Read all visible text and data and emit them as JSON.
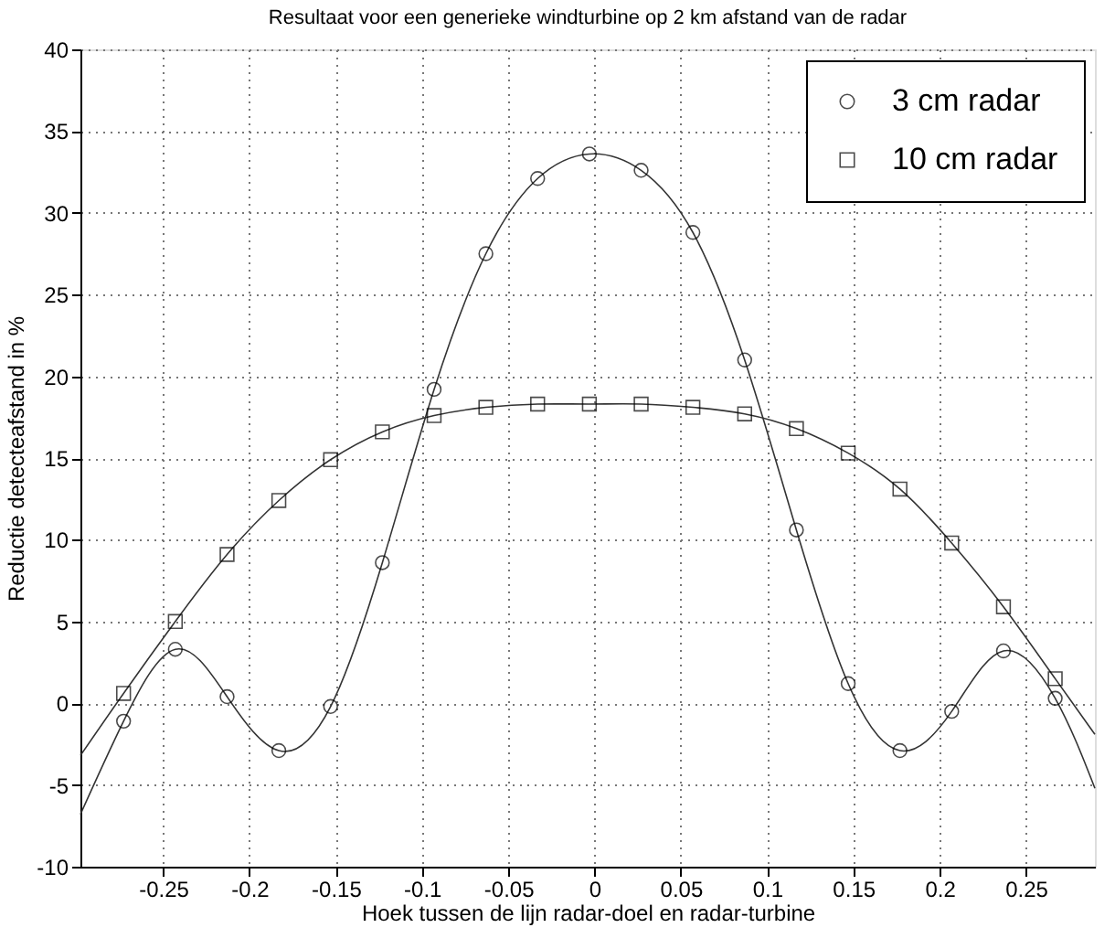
{
  "chart_data": {
    "type": "line",
    "title": "Resultaat voor een generieke windturbine op 2 km afstand van de radar",
    "xlabel": "Hoek tussen de lijn radar-doel en radar-turbine",
    "ylabel": "Reductie detecteafstand in %",
    "xlim": [
      -0.298,
      0.29
    ],
    "ylim": [
      -10,
      40
    ],
    "xticks": [
      -0.25,
      -0.2,
      -0.15,
      -0.1,
      -0.05,
      0,
      0.05,
      0.1,
      0.15,
      0.2,
      0.25
    ],
    "yticks": [
      -10,
      -5,
      0,
      5,
      10,
      15,
      20,
      25,
      30,
      35,
      40
    ],
    "grid": true,
    "legend": "top right",
    "series": [
      {
        "color": "#333333",
        "marker": "none",
        "x": [
          -0.298,
          -0.273,
          -0.243,
          -0.213,
          -0.183,
          -0.153,
          -0.123,
          -0.093,
          -0.063,
          -0.033,
          -0.003,
          0.027,
          0.057,
          0.087,
          0.117,
          0.147,
          0.177,
          0.207,
          0.237,
          0.267,
          0.29
        ],
        "values": [
          -6.8,
          -1.1,
          3.3,
          0.4,
          -2.9,
          -0.2,
          8.6,
          19.2,
          27.5,
          32.1,
          33.6,
          32.6,
          28.8,
          21.0,
          10.6,
          1.2,
          -2.9,
          -0.5,
          3.2,
          0.3,
          -5.2
        ]
      },
      {
        "color": "#333333",
        "marker": "none",
        "x": [
          -0.298,
          -0.273,
          -0.243,
          -0.213,
          -0.183,
          -0.153,
          -0.123,
          -0.093,
          -0.063,
          -0.033,
          -0.003,
          0.027,
          0.057,
          0.087,
          0.117,
          0.147,
          0.177,
          0.207,
          0.237,
          0.267,
          0.29
        ],
        "values": [
          -3.2,
          0.6,
          5.0,
          9.1,
          12.4,
          14.9,
          16.6,
          17.6,
          18.1,
          18.3,
          18.3,
          18.3,
          18.1,
          17.7,
          16.8,
          15.3,
          13.1,
          9.8,
          5.9,
          1.5,
          -1.9
        ]
      },
      {
        "type": "scatter",
        "name": "3 cm radar",
        "color": "#000000",
        "marker": "circle",
        "x": [
          -0.273,
          -0.243,
          -0.213,
          -0.183,
          -0.153,
          -0.123,
          -0.093,
          -0.063,
          -0.033,
          -0.003,
          0.027,
          0.057,
          0.087,
          0.117,
          0.147,
          0.177,
          0.207,
          0.237,
          0.267
        ],
        "values": [
          -1.1,
          3.3,
          0.4,
          -2.9,
          -0.2,
          8.6,
          19.2,
          27.5,
          32.1,
          33.6,
          32.6,
          28.8,
          21.0,
          10.6,
          1.2,
          -2.9,
          -0.5,
          3.2,
          0.3
        ]
      },
      {
        "type": "scatter",
        "name": "10 cm radar",
        "color": "#000000",
        "marker": "square",
        "x": [
          -0.273,
          -0.243,
          -0.213,
          -0.183,
          -0.153,
          -0.123,
          -0.093,
          -0.063,
          -0.033,
          -0.003,
          0.027,
          0.057,
          0.087,
          0.117,
          0.147,
          0.177,
          0.207,
          0.237,
          0.267
        ],
        "values": [
          0.6,
          5.0,
          9.1,
          12.4,
          14.9,
          16.6,
          17.6,
          18.1,
          18.3,
          18.3,
          18.3,
          18.1,
          17.7,
          16.8,
          15.3,
          13.1,
          9.8,
          5.9,
          1.5
        ]
      }
    ]
  }
}
